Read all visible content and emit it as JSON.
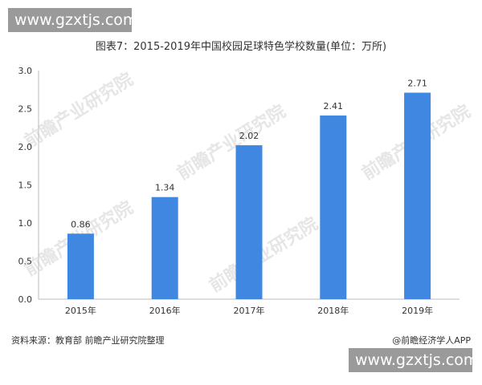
{
  "watermark": {
    "site_top": "www.gzxtjs.com",
    "site_bottom": "www.gzxtjs.com",
    "brand": "前瞻产业研究院"
  },
  "source_note": "资料来源：教育部 前瞻产业研究院整理",
  "credit": "@前瞻经济学人APP",
  "colors": {
    "bar": "#3f87e0",
    "axis": "#bbbbbb",
    "grid": "#e3e3e3"
  },
  "chart_data": {
    "type": "bar",
    "title": "图表7：2015-2019年中国校园足球特色学校数量(单位：万所)",
    "categories": [
      "2015年",
      "2016年",
      "2017年",
      "2018年",
      "2019年"
    ],
    "values": [
      0.86,
      1.34,
      2.02,
      2.41,
      2.71
    ],
    "data_labels": [
      "0.86",
      "1.34",
      "2.02",
      "2.41",
      "2.71"
    ],
    "yticks": [
      "0.0",
      "0.5",
      "1.0",
      "1.5",
      "2.0",
      "2.5",
      "3.0"
    ],
    "ylim": [
      0,
      3.0
    ],
    "grid": false,
    "legend": "none"
  }
}
